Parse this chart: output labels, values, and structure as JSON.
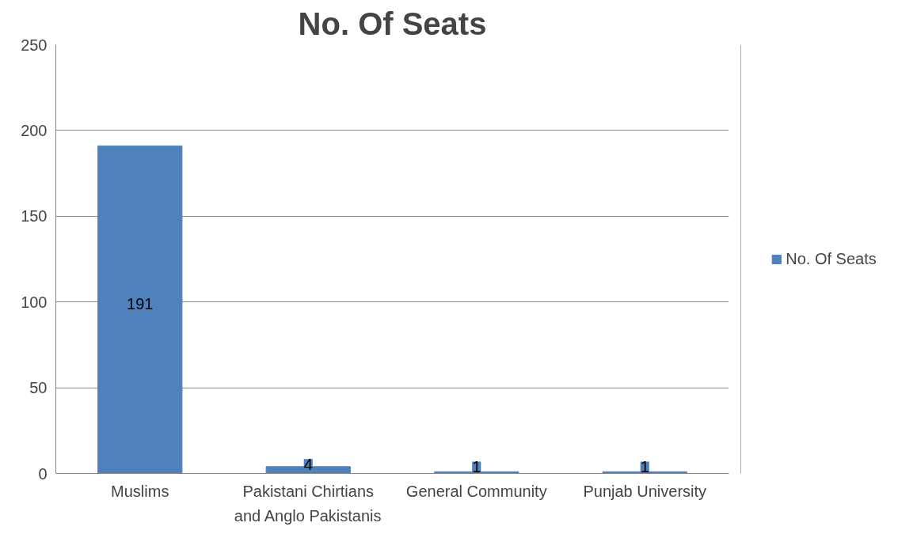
{
  "chart_data": {
    "type": "bar",
    "title": "No. Of Seats",
    "categories": [
      "Muslims",
      "Pakistani Chirtians and Anglo Pakistanis",
      "General Community",
      "Punjab University"
    ],
    "series": [
      {
        "name": "No. Of Seats",
        "color": "#4f81bd",
        "values": [
          191,
          4,
          1,
          1
        ]
      }
    ],
    "ylim": [
      0,
      250
    ],
    "yticks": [
      0,
      50,
      100,
      150,
      200,
      250
    ],
    "grid": "y",
    "legend": "right",
    "data_labels": true
  }
}
